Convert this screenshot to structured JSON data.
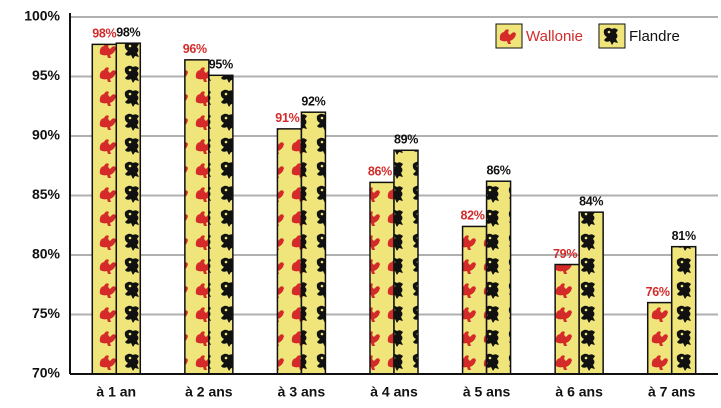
{
  "chart_data": {
    "type": "bar",
    "categories": [
      "à 1 an",
      "à 2 ans",
      "à 3 ans",
      "à 4 ans",
      "à 5 ans",
      "à 6 ans",
      "à 7 ans"
    ],
    "series": [
      {
        "name": "Wallonie",
        "color": "#d42a2a",
        "values": [
          97.7,
          96.4,
          90.6,
          86.1,
          82.4,
          79.2,
          76.0
        ],
        "value_labels": [
          "98%",
          "96%",
          "91%",
          "86%",
          "82%",
          "79%",
          "76%"
        ]
      },
      {
        "name": "Flandre",
        "color": "#111111",
        "values": [
          97.8,
          95.1,
          92.0,
          88.8,
          86.2,
          83.6,
          80.7
        ],
        "value_labels": [
          "98%",
          "95%",
          "92%",
          "89%",
          "86%",
          "84%",
          "81%"
        ]
      }
    ],
    "bar_fill": "#efe57a",
    "ylim": [
      70,
      100
    ],
    "yticks": [
      {
        "value": 70,
        "label": "70%"
      },
      {
        "value": 75,
        "label": "75%"
      },
      {
        "value": 80,
        "label": "80%"
      },
      {
        "value": 85,
        "label": "85%"
      },
      {
        "value": 90,
        "label": "90%"
      },
      {
        "value": 95,
        "label": "95%"
      },
      {
        "value": 100,
        "label": "100%"
      }
    ],
    "grid": true,
    "legend": "upper right"
  }
}
